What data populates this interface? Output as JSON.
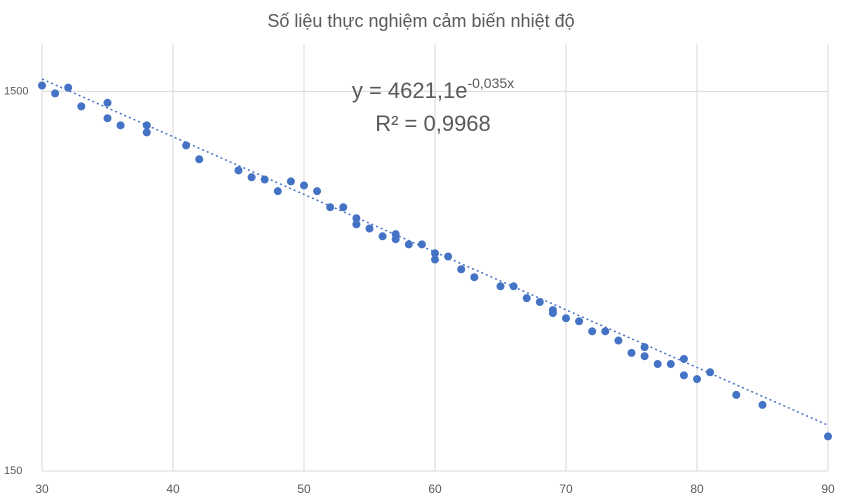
{
  "chart_data": {
    "type": "scatter",
    "title": "Số liệu thực nghiệm cảm biến nhiệt độ",
    "x": [
      30,
      31,
      32,
      33,
      35,
      35,
      36,
      38,
      38,
      41,
      42,
      45,
      46,
      47,
      48,
      49,
      50,
      51,
      52,
      53,
      54,
      54,
      55,
      56,
      57,
      57,
      58,
      59,
      60,
      60,
      61,
      62,
      63,
      65,
      66,
      67,
      68,
      69,
      69,
      70,
      71,
      72,
      73,
      74,
      75,
      76,
      76,
      77,
      78,
      79,
      79,
      80,
      81,
      83,
      85,
      90
    ],
    "values": [
      1555,
      1482,
      1535,
      1370,
      1400,
      1275,
      1221,
      1221,
      1170,
      1081,
      994,
      929,
      891,
      879,
      819,
      869,
      848,
      819,
      743,
      743,
      695,
      670,
      653,
      623,
      631,
      612,
      593,
      593,
      562,
      541,
      551,
      510,
      486,
      460,
      460,
      428,
      418,
      398,
      391,
      379,
      372,
      350,
      350,
      331,
      307,
      318,
      301,
      287,
      287,
      296,
      268,
      262,
      273,
      238,
      224,
      185
    ],
    "color": "#4472c4",
    "xlim": [
      30,
      90
    ],
    "xticks": [
      30,
      40,
      50,
      60,
      70,
      80,
      90
    ],
    "ylim": [
      150,
      2000
    ],
    "yticks": [
      150,
      1500
    ],
    "log_y": true,
    "grid": true,
    "trendline": {
      "equation": "y = 4621,1e",
      "exponent": "-0,035x",
      "r_squared": "R² = 0,9968",
      "a": 4621.1,
      "b": -0.035
    }
  }
}
